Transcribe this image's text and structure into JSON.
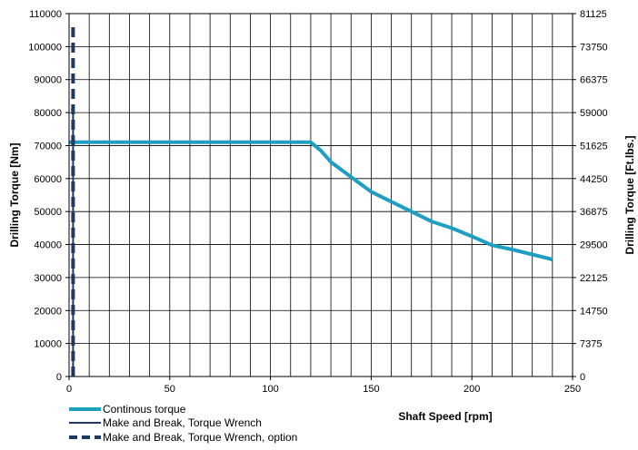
{
  "chart_data": {
    "type": "line",
    "xlabel": "Shaft Speed [rpm]",
    "ylabel": "Drilling Torque [Nm]",
    "y2label": "Drilling Torque [Ft.lbs.]",
    "xlim": [
      0,
      250
    ],
    "ylim": [
      0,
      110000
    ],
    "x_ticks": [
      "0",
      "50",
      "100",
      "150",
      "200",
      "250"
    ],
    "y_ticks": [
      "0",
      "10000",
      "20000",
      "30000",
      "40000",
      "50000",
      "60000",
      "70000",
      "80000",
      "90000",
      "100000",
      "110000"
    ],
    "y2_ticks": [
      "0",
      "7375",
      "14750",
      "22125",
      "29500",
      "36875",
      "44250",
      "51625",
      "59000",
      "66375",
      "73750",
      "81125"
    ],
    "grid": true,
    "legend_position": "bottom-left",
    "colors": {
      "continuous": "#1e9ec1",
      "make_break": "#1f3864",
      "make_break_option": "#1f3864"
    },
    "series": [
      {
        "name": "Continous torque",
        "style": "solid-thick",
        "points": [
          [
            0,
            71000
          ],
          [
            120,
            71000
          ],
          [
            125,
            68500
          ],
          [
            130,
            65000
          ],
          [
            140,
            60500
          ],
          [
            150,
            56000
          ],
          [
            160,
            53000
          ],
          [
            170,
            50000
          ],
          [
            180,
            47000
          ],
          [
            190,
            45000
          ],
          [
            200,
            42500
          ],
          [
            210,
            39800
          ],
          [
            220,
            38500
          ],
          [
            230,
            37000
          ],
          [
            240,
            35500
          ]
        ]
      },
      {
        "name": "Make and Break, Torque Wrench",
        "style": "solid-thin",
        "points": [
          [
            2,
            0
          ],
          [
            2,
            81000
          ],
          [
            1,
            81000
          ]
        ]
      },
      {
        "name": "Make and Break, Torque Wrench,  option",
        "style": "dashed",
        "points": [
          [
            2,
            0
          ],
          [
            2,
            106000
          ],
          [
            0,
            106000
          ]
        ]
      }
    ]
  }
}
